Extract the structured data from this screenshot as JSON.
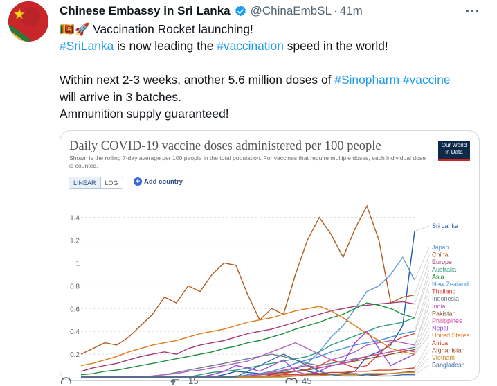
{
  "tweet": {
    "author_name": "Chinese Embassy in Sri Lanka",
    "handle": "@ChinaEmbSL",
    "separator": "·",
    "time": "41m",
    "line1_flags": "🇱🇰🚀",
    "line1_text": "Vaccination Rocket launching!",
    "line2": {
      "tag1": "#SriLanka",
      "text1": " is now leading the ",
      "tag2": "#vaccination",
      "text2": " speed in the world!"
    },
    "line3": {
      "text1": "Within next 2-3 weeks, another 5.6 million doses of ",
      "tag1": "#Sinopharm",
      "space": " ",
      "tag2": "#vaccine"
    },
    "line4": "will arrive in 3 batches.",
    "line5": "Ammunition supply guaranteed!",
    "actions": {
      "reply_count": "",
      "retweet_count": "15",
      "like_count": "45"
    }
  },
  "chart_card": {
    "title": "Daily COVID-19 vaccine doses administered per 100 people",
    "subtitle": "Shown is the rolling 7-day average per 100 people in the total population. For vaccines that require multiple doses, each individual dose is counted.",
    "logo_line1": "Our World",
    "logo_line2": "in Data",
    "toggle_linear": "LINEAR",
    "toggle_log": "LOG",
    "add_country": "Add country",
    "icons": {
      "add": "plus-circle-icon",
      "verified": "verified-badge-icon",
      "more": "more-icon"
    }
  },
  "chart_data": {
    "type": "line",
    "title": "Daily COVID-19 vaccine doses administered per 100 people",
    "ylim": [
      0,
      1.55
    ],
    "y_ticks": [
      "0.2",
      "0.4",
      "0.6",
      "0.8",
      "1",
      "1.2",
      "1.4"
    ],
    "grid": true,
    "legend_placement": "right",
    "series": [
      {
        "name": "Sri Lanka",
        "color": "#1f5aa6",
        "values": [
          0.0,
          0.0,
          0.0,
          0.0,
          0.0,
          0.0,
          0.0,
          0.0,
          0.0,
          0.0,
          0.0,
          0.0,
          0.02,
          0.05,
          0.04,
          0.03,
          0.02,
          0.05,
          0.08,
          0.05,
          0.03,
          0.02,
          0.03,
          0.05,
          0.18,
          0.22,
          0.28,
          0.45,
          1.28
        ]
      },
      {
        "name": "Japan",
        "color": "#5b9bd5",
        "values": [
          0.0,
          0.0,
          0.0,
          0.0,
          0.0,
          0.0,
          0.0,
          0.0,
          0.0,
          0.0,
          0.0,
          0.0,
          0.0,
          0.0,
          0.01,
          0.02,
          0.03,
          0.05,
          0.08,
          0.12,
          0.22,
          0.35,
          0.45,
          0.6,
          0.75,
          0.8,
          0.9,
          1.05,
          0.85
        ]
      },
      {
        "name": "China",
        "color": "#b05a1e",
        "values": [
          0.2,
          0.25,
          0.3,
          0.28,
          0.35,
          0.45,
          0.55,
          0.7,
          0.65,
          0.8,
          0.75,
          0.9,
          1.0,
          0.98,
          0.72,
          0.5,
          0.6,
          0.55,
          0.9,
          1.2,
          1.4,
          1.25,
          1.05,
          1.3,
          1.5,
          1.2,
          0.65,
          0.7,
          0.72
        ]
      },
      {
        "name": "Europe",
        "color": "#a23b72",
        "values": [
          0.05,
          0.08,
          0.1,
          0.12,
          0.15,
          0.18,
          0.2,
          0.22,
          0.2,
          0.25,
          0.28,
          0.3,
          0.32,
          0.35,
          0.38,
          0.4,
          0.42,
          0.45,
          0.48,
          0.52,
          0.55,
          0.58,
          0.6,
          0.62,
          0.63,
          0.64,
          0.65,
          0.66,
          0.64
        ]
      },
      {
        "name": "Australia",
        "color": "#2f9c7e",
        "values": [
          0.0,
          0.0,
          0.0,
          0.0,
          0.0,
          0.0,
          0.0,
          0.0,
          0.0,
          0.0,
          0.02,
          0.04,
          0.05,
          0.06,
          0.08,
          0.1,
          0.12,
          0.14,
          0.16,
          0.18,
          0.22,
          0.28,
          0.32,
          0.36,
          0.4,
          0.44,
          0.46,
          0.48,
          0.52
        ]
      },
      {
        "name": "Asia",
        "color": "#1a8f3a",
        "values": [
          0.02,
          0.03,
          0.05,
          0.06,
          0.08,
          0.1,
          0.12,
          0.14,
          0.16,
          0.18,
          0.2,
          0.22,
          0.25,
          0.27,
          0.3,
          0.32,
          0.35,
          0.38,
          0.42,
          0.45,
          0.48,
          0.52,
          0.55,
          0.6,
          0.65,
          0.63,
          0.6,
          0.55,
          0.52
        ]
      },
      {
        "name": "New Zealand",
        "color": "#4a90d9",
        "values": [
          0.0,
          0.0,
          0.0,
          0.0,
          0.0,
          0.0,
          0.0,
          0.0,
          0.0,
          0.0,
          0.0,
          0.0,
          0.0,
          0.0,
          0.02,
          0.03,
          0.05,
          0.08,
          0.12,
          0.15,
          0.18,
          0.22,
          0.25,
          0.28,
          0.3,
          0.32,
          0.35,
          0.38,
          0.4
        ]
      },
      {
        "name": "Thailand",
        "color": "#e0403a",
        "values": [
          0.0,
          0.0,
          0.0,
          0.0,
          0.0,
          0.0,
          0.0,
          0.0,
          0.0,
          0.0,
          0.0,
          0.0,
          0.0,
          0.0,
          0.0,
          0.0,
          0.02,
          0.03,
          0.05,
          0.07,
          0.1,
          0.15,
          0.12,
          0.08,
          0.1,
          0.2,
          0.3,
          0.35,
          0.38
        ]
      },
      {
        "name": "Indonesia",
        "color": "#6f7d8c",
        "values": [
          0.0,
          0.0,
          0.0,
          0.0,
          0.0,
          0.0,
          0.01,
          0.02,
          0.04,
          0.06,
          0.08,
          0.1,
          0.12,
          0.14,
          0.16,
          0.18,
          0.2,
          0.18,
          0.15,
          0.12,
          0.1,
          0.12,
          0.14,
          0.16,
          0.18,
          0.2,
          0.22,
          0.24,
          0.26
        ]
      },
      {
        "name": "India",
        "color": "#b05fc8",
        "values": [
          0.0,
          0.0,
          0.0,
          0.0,
          0.0,
          0.0,
          0.01,
          0.02,
          0.03,
          0.05,
          0.06,
          0.08,
          0.1,
          0.12,
          0.14,
          0.18,
          0.22,
          0.26,
          0.3,
          0.25,
          0.2,
          0.15,
          0.18,
          0.22,
          0.28,
          0.3,
          0.32,
          0.3,
          0.28
        ]
      },
      {
        "name": "Pakistan",
        "color": "#7f5630",
        "values": [
          0.0,
          0.0,
          0.0,
          0.0,
          0.0,
          0.0,
          0.0,
          0.0,
          0.0,
          0.0,
          0.0,
          0.0,
          0.0,
          0.01,
          0.01,
          0.02,
          0.03,
          0.04,
          0.05,
          0.06,
          0.08,
          0.1,
          0.12,
          0.14,
          0.16,
          0.18,
          0.2,
          0.22,
          0.24
        ]
      },
      {
        "name": "Philippines",
        "color": "#d6429c",
        "values": [
          0.0,
          0.0,
          0.0,
          0.0,
          0.0,
          0.0,
          0.0,
          0.0,
          0.0,
          0.0,
          0.0,
          0.0,
          0.0,
          0.0,
          0.01,
          0.02,
          0.04,
          0.06,
          0.08,
          0.1,
          0.08,
          0.1,
          0.12,
          0.15,
          0.18,
          0.2,
          0.22,
          0.24,
          0.22
        ]
      },
      {
        "name": "Nepal",
        "color": "#9a4ad8",
        "values": [
          0.0,
          0.0,
          0.0,
          0.0,
          0.0,
          0.0,
          0.0,
          0.0,
          0.0,
          0.0,
          0.0,
          0.02,
          0.05,
          0.1,
          0.08,
          0.05,
          0.1,
          0.15,
          0.05,
          0.02,
          0.05,
          0.1,
          0.12,
          0.3,
          0.4,
          0.25,
          0.1,
          0.15,
          0.2
        ]
      },
      {
        "name": "United States",
        "color": "#e07b1a",
        "values": [
          0.1,
          0.12,
          0.15,
          0.18,
          0.22,
          0.25,
          0.28,
          0.3,
          0.32,
          0.35,
          0.38,
          0.4,
          0.42,
          0.45,
          0.48,
          0.5,
          0.52,
          0.55,
          0.58,
          0.6,
          0.62,
          0.58,
          0.52,
          0.45,
          0.38,
          0.32,
          0.25,
          0.22,
          0.2
        ]
      },
      {
        "name": "Africa",
        "color": "#d2452a",
        "values": [
          0.0,
          0.0,
          0.0,
          0.0,
          0.0,
          0.0,
          0.0,
          0.0,
          0.0,
          0.0,
          0.0,
          0.0,
          0.0,
          0.0,
          0.0,
          0.01,
          0.01,
          0.02,
          0.02,
          0.03,
          0.03,
          0.04,
          0.04,
          0.05,
          0.05,
          0.06,
          0.06,
          0.07,
          0.08
        ]
      },
      {
        "name": "Afghanistan",
        "color": "#a0522d",
        "values": [
          0.0,
          0.0,
          0.0,
          0.0,
          0.0,
          0.0,
          0.0,
          0.0,
          0.0,
          0.0,
          0.0,
          0.0,
          0.0,
          0.0,
          0.0,
          0.0,
          0.0,
          0.01,
          0.01,
          0.02,
          0.02,
          0.02,
          0.03,
          0.03,
          0.02,
          0.02,
          0.03,
          0.04,
          0.05
        ]
      },
      {
        "name": "Vietnam",
        "color": "#c28a2c",
        "values": [
          0.0,
          0.0,
          0.0,
          0.0,
          0.0,
          0.0,
          0.0,
          0.0,
          0.0,
          0.0,
          0.0,
          0.0,
          0.0,
          0.0,
          0.0,
          0.0,
          0.0,
          0.0,
          0.01,
          0.01,
          0.01,
          0.02,
          0.02,
          0.02,
          0.03,
          0.03,
          0.03,
          0.04,
          0.04
        ]
      },
      {
        "name": "Bangladesh",
        "color": "#3a6ea5",
        "values": [
          0.0,
          0.0,
          0.0,
          0.0,
          0.0,
          0.0,
          0.0,
          0.0,
          0.0,
          0.0,
          0.0,
          0.0,
          0.0,
          0.0,
          0.05,
          0.1,
          0.15,
          0.2,
          0.15,
          0.1,
          0.05,
          0.02,
          0.01,
          0.01,
          0.02,
          0.01,
          0.01,
          0.02,
          0.02
        ]
      }
    ]
  }
}
